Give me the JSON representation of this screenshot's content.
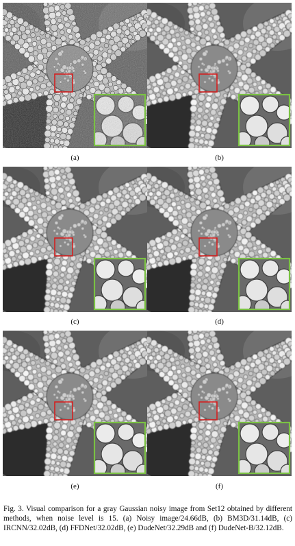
{
  "figure": {
    "panels": [
      {
        "label": "(a)",
        "variant": "noisy"
      },
      {
        "label": "(b)",
        "variant": "denoised"
      },
      {
        "label": "(c)",
        "variant": "denoised"
      },
      {
        "label": "(d)",
        "variant": "denoised"
      },
      {
        "label": "(e)",
        "variant": "denoised"
      },
      {
        "label": "(f)",
        "variant": "denoised"
      }
    ],
    "roi_color": "#d42020",
    "zoom_border_color": "#7ac143",
    "caption": "Fig. 3.  Visual comparison for a gray Gaussian noisy image from Set12 obtained by different methods, when noise level is 15. (a) Noisy image/24.66dB, (b) BM3D/31.14dB, (c) IRCNN/32.02dB, (d) FFDNet/32.02dB, (e) DudeNet/32.29dB and (f) DudeNet-B/32.12dB."
  }
}
